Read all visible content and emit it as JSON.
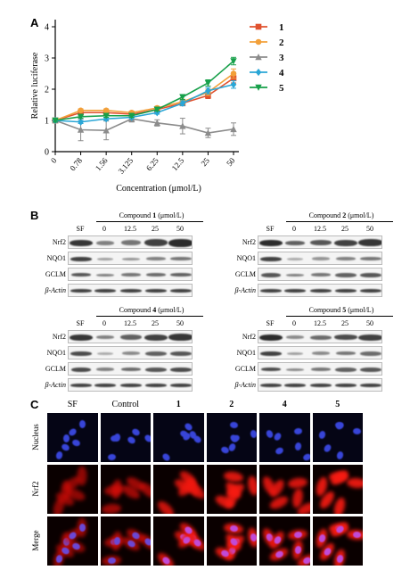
{
  "panels": {
    "a": "A",
    "b": "B",
    "c": "C"
  },
  "chart_data": {
    "type": "line",
    "xlabel": "Concentration (μmol/L)",
    "ylabel": "Relative luciferase",
    "categories": [
      "0",
      "0.78",
      "1.56",
      "3.125",
      "6.25",
      "12.5",
      "25",
      "50"
    ],
    "ylim": [
      0,
      4
    ],
    "yticks": [
      "0",
      "1",
      "2",
      "3",
      "4"
    ],
    "series": [
      {
        "name": "1",
        "color": "#e0522f",
        "marker": "square",
        "values": [
          1.0,
          1.25,
          1.25,
          1.2,
          1.35,
          1.55,
          1.8,
          2.35
        ],
        "err": [
          0.05,
          0.05,
          0.05,
          0.05,
          0.05,
          0.08,
          0.1,
          0.15
        ]
      },
      {
        "name": "2",
        "color": "#f2a03a",
        "marker": "circle",
        "values": [
          1.0,
          1.32,
          1.32,
          1.25,
          1.4,
          1.6,
          1.9,
          2.5
        ],
        "err": [
          0.05,
          0.05,
          0.05,
          0.05,
          0.05,
          0.08,
          0.1,
          0.15
        ]
      },
      {
        "name": "3",
        "color": "#8c8c8c",
        "marker": "triangle",
        "values": [
          1.0,
          0.7,
          0.68,
          1.05,
          0.92,
          0.82,
          0.6,
          0.72
        ],
        "err": [
          0.05,
          0.35,
          0.3,
          0.1,
          0.1,
          0.25,
          0.15,
          0.2
        ]
      },
      {
        "name": "4",
        "color": "#2aa6d6",
        "marker": "diamond",
        "values": [
          1.0,
          0.95,
          1.05,
          1.1,
          1.25,
          1.55,
          1.95,
          2.15
        ],
        "err": [
          0.05,
          0.05,
          0.05,
          0.05,
          0.05,
          0.08,
          0.1,
          0.12
        ]
      },
      {
        "name": "5",
        "color": "#17a04a",
        "marker": "triangle-down",
        "values": [
          1.0,
          1.12,
          1.15,
          1.15,
          1.35,
          1.75,
          2.2,
          2.9
        ],
        "err": [
          0.05,
          0.05,
          0.05,
          0.05,
          0.05,
          0.08,
          0.1,
          0.12
        ]
      }
    ],
    "legend_position": "top-right"
  },
  "blots": [
    {
      "title_prefix": "Compound ",
      "compound": "1",
      "title_suffix": " (μmol/L)",
      "lanes": [
        "SF",
        "0",
        "12.5",
        "25",
        "50"
      ],
      "rows": [
        "Nrf2",
        "NQO1",
        "GCLM",
        "β-Actin"
      ]
    },
    {
      "title_prefix": "Compound ",
      "compound": "2",
      "title_suffix": " (μmol/L)",
      "lanes": [
        "SF",
        "0",
        "12.5",
        "25",
        "50"
      ],
      "rows": [
        "Nrf2",
        "NQO1",
        "GCLM",
        "β-Actin"
      ]
    },
    {
      "title_prefix": "Compound ",
      "compound": "4",
      "title_suffix": " (μmol/L)",
      "lanes": [
        "SF",
        "0",
        "12.5",
        "25",
        "50"
      ],
      "rows": [
        "Nrf2",
        "NQO1",
        "GCLM",
        "β-Actin"
      ]
    },
    {
      "title_prefix": "Compound ",
      "compound": "5",
      "title_suffix": " (μmol/L)",
      "lanes": [
        "SF",
        "0",
        "12.5",
        "25",
        "50"
      ],
      "rows": [
        "Nrf2",
        "NQO1",
        "GCLM",
        "β-Actin"
      ]
    }
  ],
  "microscopy": {
    "columns": [
      "SF",
      "Control",
      "1",
      "2",
      "4",
      "5"
    ],
    "rows": [
      "Nucleus",
      "Nrf2",
      "Merge"
    ]
  }
}
